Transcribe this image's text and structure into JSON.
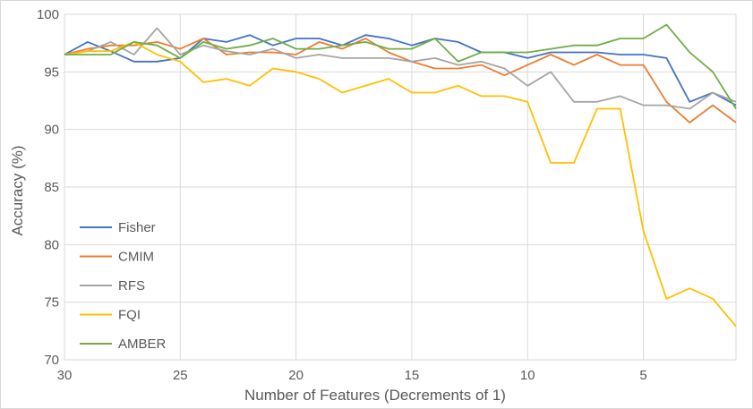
{
  "chart_data": {
    "type": "line",
    "title": "",
    "xlabel": "Number of Features (Decrements of 1)",
    "ylabel": "Accuracy (%)",
    "x": [
      30,
      29,
      28,
      27,
      26,
      25,
      24,
      23,
      22,
      21,
      20,
      19,
      18,
      17,
      16,
      15,
      14,
      13,
      12,
      11,
      10,
      9,
      8,
      7,
      6,
      5,
      4,
      3,
      2,
      1
    ],
    "xlim": [
      30,
      1
    ],
    "ylim": [
      70,
      100
    ],
    "x_ticks": [
      30,
      25,
      20,
      15,
      10,
      5
    ],
    "y_ticks": [
      70,
      75,
      80,
      85,
      90,
      95,
      100
    ],
    "grid": true,
    "legend_position": "left",
    "series": [
      {
        "name": "Fisher",
        "color": "#4472C4",
        "values": [
          96.5,
          97.6,
          96.8,
          95.9,
          95.9,
          96.2,
          97.9,
          97.6,
          98.2,
          97.3,
          97.9,
          97.9,
          97.3,
          98.2,
          97.9,
          97.3,
          97.9,
          97.6,
          96.7,
          96.7,
          96.2,
          96.7,
          96.7,
          96.7,
          96.5,
          96.5,
          96.2,
          92.4,
          93.2,
          92.1
        ]
      },
      {
        "name": "CMIM",
        "color": "#ED7D31",
        "values": [
          96.5,
          97.0,
          97.3,
          97.3,
          97.6,
          97.0,
          97.9,
          96.5,
          96.7,
          96.7,
          96.5,
          97.6,
          97.0,
          97.9,
          96.7,
          95.9,
          95.3,
          95.3,
          95.6,
          94.7,
          95.6,
          96.5,
          95.6,
          96.5,
          95.6,
          95.6,
          92.4,
          90.6,
          92.1,
          90.6
        ]
      },
      {
        "name": "RFS",
        "color": "#A5A5A5",
        "values": [
          96.5,
          96.8,
          97.6,
          96.5,
          98.8,
          96.5,
          97.3,
          96.8,
          96.5,
          97.0,
          96.2,
          96.5,
          96.2,
          96.2,
          96.2,
          95.9,
          96.2,
          95.6,
          95.9,
          95.3,
          93.8,
          95.0,
          92.4,
          92.4,
          92.9,
          92.1,
          92.1,
          91.8,
          93.2,
          92.4
        ]
      },
      {
        "name": "FQI",
        "color": "#FFC000",
        "values": [
          96.5,
          96.8,
          96.8,
          97.6,
          96.5,
          95.9,
          94.1,
          94.4,
          93.8,
          95.3,
          95.0,
          94.4,
          93.2,
          93.8,
          94.4,
          93.2,
          93.2,
          93.8,
          92.9,
          92.9,
          92.4,
          87.1,
          87.1,
          91.8,
          91.8,
          81.2,
          75.3,
          76.2,
          75.3,
          72.9
        ]
      },
      {
        "name": "AMBER",
        "color": "#70AD47",
        "values": [
          96.5,
          96.5,
          96.5,
          97.6,
          97.3,
          96.2,
          97.6,
          97.0,
          97.3,
          97.9,
          97.0,
          97.0,
          97.3,
          97.6,
          97.0,
          97.0,
          97.9,
          95.9,
          96.7,
          96.7,
          96.7,
          97.0,
          97.3,
          97.3,
          97.9,
          97.9,
          99.1,
          96.7,
          95.0,
          91.8
        ]
      }
    ]
  }
}
